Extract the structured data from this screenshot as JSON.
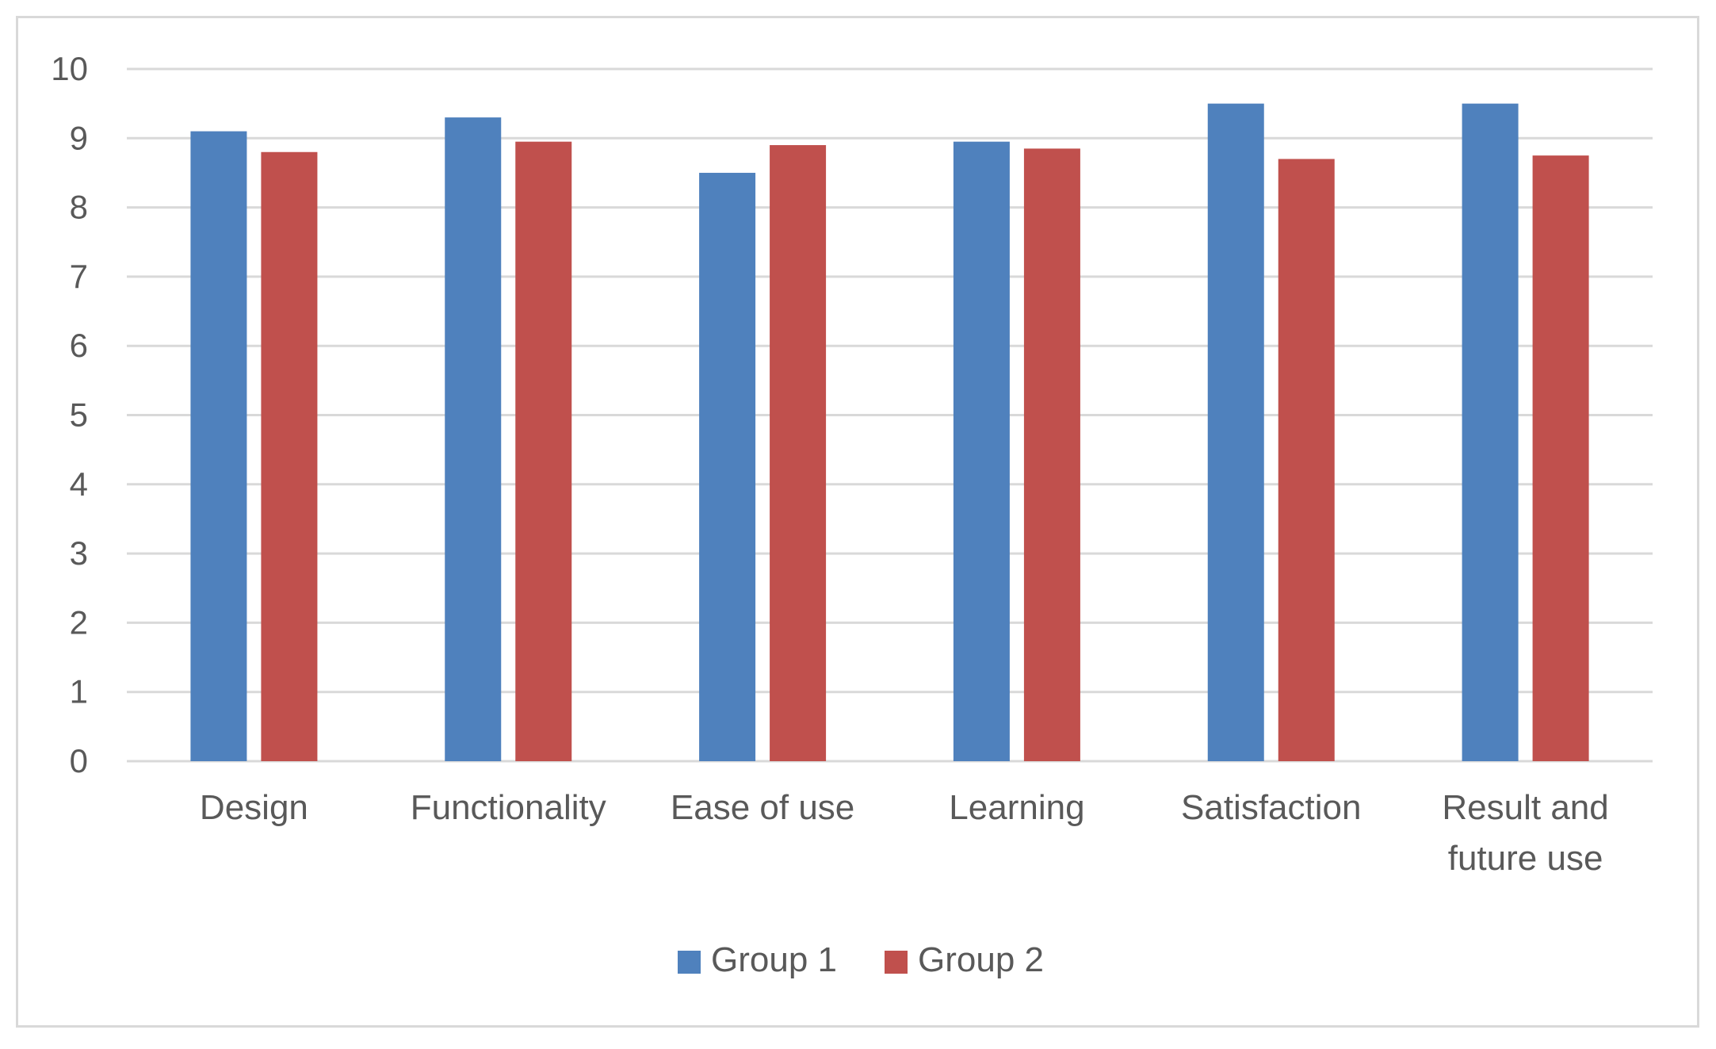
{
  "chart_data": {
    "type": "bar",
    "categories": [
      "Design",
      "Functionality",
      "Ease of use",
      "Learning",
      "Satisfaction",
      "Result and future use"
    ],
    "category_lines": [
      [
        "Design"
      ],
      [
        "Functionality"
      ],
      [
        "Ease of use"
      ],
      [
        "Learning"
      ],
      [
        "Satisfaction"
      ],
      [
        "Result and",
        "future use"
      ]
    ],
    "series": [
      {
        "name": "Group 1",
        "color": "#4f81bd",
        "values": [
          9.1,
          9.3,
          8.5,
          8.95,
          9.5,
          9.5
        ]
      },
      {
        "name": "Group 2",
        "color": "#c0504d",
        "values": [
          8.8,
          8.95,
          8.9,
          8.85,
          8.7,
          8.75
        ]
      }
    ],
    "title": "",
    "xlabel": "",
    "ylabel": "",
    "ylim": [
      0,
      10
    ],
    "yticks": [
      0,
      1,
      2,
      3,
      4,
      5,
      6,
      7,
      8,
      9,
      10
    ],
    "grid": true,
    "gridline_color": "#d9d9d9",
    "legend_position": "bottom"
  }
}
